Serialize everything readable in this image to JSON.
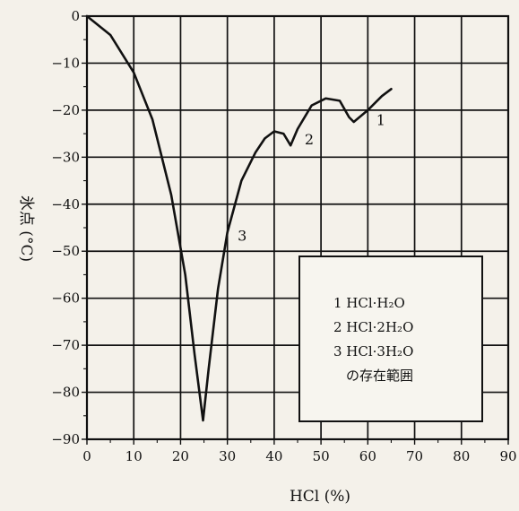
{
  "chart_data": {
    "type": "line",
    "xlabel": "HCl (%)",
    "ylabel": "氷点 (°C)",
    "xlim": [
      0,
      90
    ],
    "ylim": [
      -90,
      0
    ],
    "x_ticks": [
      0,
      10,
      20,
      30,
      40,
      50,
      60,
      70,
      80,
      90
    ],
    "y_ticks": [
      0,
      -10,
      -20,
      -30,
      -40,
      -50,
      -60,
      -70,
      -80,
      -90
    ],
    "x_tick_labels": [
      "0",
      "10",
      "20",
      "30",
      "40",
      "50",
      "60",
      "70",
      "80",
      "90"
    ],
    "y_tick_labels": [
      "0",
      "−10",
      "−20",
      "−30",
      "−40",
      "−50",
      "−60",
      "−70",
      "−80",
      "−90"
    ],
    "grid": true,
    "series": [
      {
        "values_xy": [
          [
            0,
            0
          ],
          [
            5,
            -4
          ],
          [
            10,
            -12
          ],
          [
            14,
            -22
          ],
          [
            18,
            -38
          ],
          [
            21,
            -55
          ],
          [
            23,
            -72
          ],
          [
            24.8,
            -86
          ],
          [
            26,
            -75
          ],
          [
            28,
            -58
          ],
          [
            30,
            -46
          ],
          [
            33,
            -35
          ],
          [
            36,
            -29
          ],
          [
            38,
            -26
          ],
          [
            40,
            -24.5
          ],
          [
            42,
            -25
          ],
          [
            43.5,
            -27.5
          ],
          [
            45,
            -24
          ],
          [
            48,
            -19
          ],
          [
            51,
            -17.5
          ],
          [
            54,
            -18
          ],
          [
            56,
            -21.5
          ],
          [
            57,
            -22.5
          ],
          [
            60,
            -20
          ],
          [
            63,
            -17
          ],
          [
            65,
            -15.5
          ]
        ]
      }
    ],
    "annotations": [
      {
        "text": "1",
        "x": 61.8,
        "y": -23.2
      },
      {
        "text": "2",
        "x": 46.5,
        "y": -27.3
      },
      {
        "text": "3",
        "x": 32.2,
        "y": -47.8
      }
    ],
    "legend": {
      "placement": "lower-right",
      "items": [
        "1 HCl·H₂O",
        "2 HCl·2H₂O",
        "3 HCl·3H₂O"
      ],
      "caption": "の存在範囲"
    }
  }
}
